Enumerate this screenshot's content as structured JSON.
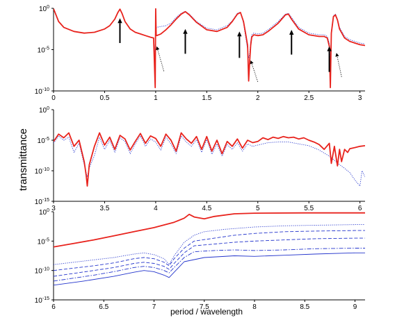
{
  "chart_data": [
    {
      "type": "line",
      "xlim": [
        0,
        3.05
      ],
      "ylim_log10": [
        -10,
        0
      ],
      "y_scale": "log",
      "x_ticks": [
        0,
        0.5,
        1,
        1.5,
        2,
        2.5,
        3
      ],
      "x_tick_labels": [
        "0",
        "0.5",
        "1",
        "1.5",
        "2",
        "2.5",
        "3"
      ],
      "y_ticks": [
        {
          "base": "10",
          "exp": "0"
        },
        {
          "base": "10",
          "exp": "-5"
        },
        {
          "base": "10",
          "exp": "-10"
        }
      ],
      "grid": false,
      "series": [
        {
          "color": "#e8221c",
          "style": "solid",
          "kind": "main",
          "x": [
            0,
            0.05,
            0.1,
            0.2,
            0.3,
            0.4,
            0.5,
            0.55,
            0.6,
            0.63,
            0.65,
            0.67,
            0.7,
            0.75,
            0.8,
            0.85,
            0.9,
            0.95,
            0.98,
            0.995,
            1.0,
            1.005,
            1.01,
            1.05,
            1.1,
            1.15,
            1.2,
            1.25,
            1.29,
            1.33,
            1.4,
            1.5,
            1.6,
            1.7,
            1.75,
            1.8,
            1.83,
            1.86,
            1.88,
            1.9,
            1.91,
            1.92,
            1.93,
            1.94,
            1.96,
            2.0,
            2.05,
            2.1,
            2.2,
            2.27,
            2.3,
            2.33,
            2.4,
            2.5,
            2.6,
            2.65,
            2.68,
            2.7,
            2.71,
            2.72,
            2.74,
            2.76,
            2.78,
            2.8,
            2.85,
            2.9,
            2.95,
            3.0,
            3.05
          ],
          "y_log10": [
            -0.05,
            -1.6,
            -2.3,
            -2.8,
            -3.0,
            -2.9,
            -2.5,
            -2.1,
            -1.3,
            -0.5,
            -0.1,
            -0.6,
            -1.6,
            -2.5,
            -2.9,
            -3.1,
            -3.3,
            -3.5,
            -3.6,
            -9.6,
            -0.05,
            -3.2,
            -3.3,
            -3.1,
            -2.6,
            -2.0,
            -1.3,
            -0.7,
            -0.4,
            -0.8,
            -1.7,
            -2.6,
            -2.8,
            -2.3,
            -1.6,
            -0.7,
            -0.5,
            -1.6,
            -3.0,
            -4.5,
            -8.8,
            -6.5,
            -4.5,
            -3.5,
            -3.2,
            -3.3,
            -3.2,
            -2.8,
            -1.8,
            -0.8,
            -0.7,
            -1.3,
            -2.5,
            -3.2,
            -3.4,
            -3.4,
            -3.6,
            -4.6,
            -9.6,
            -3.0,
            -1.0,
            -0.8,
            -1.4,
            -2.5,
            -3.6,
            -4.0,
            -4.2,
            -4.4,
            -4.5
          ]
        },
        {
          "color": "#2233cc",
          "style": "dotted",
          "kind": "alt",
          "x": [
            0,
            0.05,
            0.1,
            0.2,
            0.3,
            0.4,
            0.5,
            0.55,
            0.6,
            0.63,
            0.65,
            0.67,
            0.7,
            0.75,
            0.8,
            0.85,
            0.9,
            0.95,
            0.98,
            0.995,
            1.0,
            1.005,
            1.01,
            1.05,
            1.1,
            1.15,
            1.2,
            1.25,
            1.29,
            1.33,
            1.4,
            1.5,
            1.6,
            1.7,
            1.75,
            1.8,
            1.83,
            1.86,
            1.88,
            1.9,
            1.91,
            1.92,
            1.93,
            1.94,
            1.96,
            2.0,
            2.05,
            2.1,
            2.2,
            2.27,
            2.3,
            2.33,
            2.4,
            2.5,
            2.6,
            2.65,
            2.68,
            2.7,
            2.71,
            2.72,
            2.74,
            2.76,
            2.78,
            2.8,
            2.85,
            2.9,
            2.95,
            3.0,
            3.05
          ],
          "y_log10": [
            -0.05,
            -1.6,
            -2.3,
            -2.8,
            -3.0,
            -2.9,
            -2.5,
            -2.1,
            -1.3,
            -0.5,
            -0.1,
            -0.6,
            -1.6,
            -2.5,
            -2.9,
            -3.1,
            -3.3,
            -3.5,
            -3.6,
            -6.0,
            -1.0,
            -2.4,
            -2.3,
            -2.2,
            -2.1,
            -1.8,
            -1.1,
            -0.6,
            -0.35,
            -0.7,
            -1.6,
            -2.4,
            -2.6,
            -2.1,
            -1.5,
            -0.6,
            -0.45,
            -1.8,
            -3.4,
            -5.0,
            -6.0,
            -5.5,
            -4.0,
            -3.2,
            -3.0,
            -3.1,
            -3.0,
            -2.6,
            -1.6,
            -0.7,
            -0.6,
            -1.1,
            -2.3,
            -3.0,
            -3.2,
            -3.2,
            -3.4,
            -4.2,
            -6.5,
            -2.8,
            -0.9,
            -0.7,
            -1.3,
            -2.3,
            -3.4,
            -3.8,
            -4.0,
            -4.2,
            -4.3
          ]
        }
      ],
      "annotations": [
        {
          "kind": "solid-arrow",
          "x": 0.65,
          "y_log10": -4.2,
          "tip_y_log10": -1.2
        },
        {
          "kind": "solid-arrow",
          "x": 1.29,
          "y_log10": -5.5,
          "tip_y_log10": -2.5
        },
        {
          "kind": "solid-arrow",
          "x": 1.82,
          "y_log10": -6.0,
          "tip_y_log10": -2.8
        },
        {
          "kind": "solid-arrow",
          "x": 2.33,
          "y_log10": -5.6,
          "tip_y_log10": -2.6
        },
        {
          "kind": "solid-arrow",
          "x": 2.7,
          "y_log10": -7.7,
          "tip_y_log10": -4.6
        },
        {
          "kind": "dotted-arrow",
          "x": 1.08,
          "y_log10": -7.6,
          "tip_x": 1.01,
          "tip_y_log10": -4.6
        },
        {
          "kind": "dotted-arrow",
          "x": 2.0,
          "y_log10": -8.9,
          "tip_x": 1.93,
          "tip_y_log10": -6.3
        },
        {
          "kind": "dotted-arrow",
          "x": 2.82,
          "y_log10": -8.3,
          "tip_x": 2.77,
          "tip_y_log10": -5.4
        }
      ]
    },
    {
      "type": "line",
      "xlim": [
        3,
        6.05
      ],
      "ylim_log10": [
        -15,
        0
      ],
      "y_scale": "log",
      "x_ticks": [
        3,
        3.5,
        4,
        4.5,
        5,
        5.5,
        6
      ],
      "x_tick_labels": [
        "3",
        "3.5",
        "4",
        "4.5",
        "5",
        "5.5",
        "6"
      ],
      "y_ticks": [
        {
          "base": "10",
          "exp": "0"
        },
        {
          "base": "10",
          "exp": "-5"
        },
        {
          "base": "10",
          "exp": "-10"
        },
        {
          "base": "10",
          "exp": "-15"
        }
      ],
      "grid": false,
      "series": [
        {
          "color": "#e8221c",
          "style": "solid",
          "kind": "main",
          "x": [
            3.0,
            3.05,
            3.1,
            3.15,
            3.2,
            3.25,
            3.3,
            3.32,
            3.33,
            3.35,
            3.4,
            3.45,
            3.5,
            3.55,
            3.6,
            3.65,
            3.7,
            3.75,
            3.8,
            3.85,
            3.9,
            3.95,
            4.0,
            4.05,
            4.1,
            4.15,
            4.2,
            4.25,
            4.3,
            4.35,
            4.4,
            4.45,
            4.5,
            4.55,
            4.6,
            4.65,
            4.7,
            4.75,
            4.8,
            4.85,
            4.9,
            4.95,
            5.0,
            5.05,
            5.1,
            5.15,
            5.2,
            5.25,
            5.3,
            5.35,
            5.4,
            5.45,
            5.5,
            5.55,
            5.6,
            5.65,
            5.7,
            5.72,
            5.75,
            5.78,
            5.8,
            5.82,
            5.85,
            5.88,
            5.9,
            5.95,
            6.0,
            6.05
          ],
          "y_log10": [
            -5.2,
            -4.0,
            -4.6,
            -3.8,
            -6.0,
            -5.0,
            -8.5,
            -10.8,
            -12.5,
            -9.0,
            -6.0,
            -3.8,
            -5.8,
            -4.5,
            -6.5,
            -4.2,
            -4.8,
            -6.6,
            -5.2,
            -3.9,
            -5.5,
            -4.3,
            -4.7,
            -6.0,
            -4.0,
            -5.0,
            -6.8,
            -3.8,
            -4.8,
            -5.5,
            -4.4,
            -6.5,
            -4.4,
            -6.8,
            -5.0,
            -7.2,
            -5.2,
            -6.0,
            -4.8,
            -6.3,
            -5.0,
            -5.4,
            -5.2,
            -4.6,
            -4.9,
            -4.5,
            -4.7,
            -4.4,
            -4.6,
            -4.5,
            -4.8,
            -4.6,
            -5.0,
            -5.3,
            -5.7,
            -6.5,
            -5.5,
            -8.8,
            -6.0,
            -9.2,
            -6.5,
            -8.5,
            -6.5,
            -7.0,
            -6.4,
            -6.2,
            -6.0,
            -5.9
          ]
        },
        {
          "color": "#2233cc",
          "style": "dotted",
          "kind": "alt",
          "x": [
            3.0,
            3.05,
            3.1,
            3.15,
            3.2,
            3.25,
            3.3,
            3.33,
            3.35,
            3.4,
            3.45,
            3.5,
            3.55,
            3.6,
            3.65,
            3.7,
            3.75,
            3.8,
            3.85,
            3.9,
            3.95,
            4.0,
            4.05,
            4.1,
            4.15,
            4.2,
            4.25,
            4.3,
            4.35,
            4.4,
            4.45,
            4.5,
            4.55,
            4.6,
            4.65,
            4.7,
            4.75,
            4.8,
            4.85,
            4.9,
            4.95,
            5.0,
            5.1,
            5.2,
            5.3,
            5.4,
            5.5,
            5.6,
            5.7,
            5.75,
            5.8,
            5.85,
            5.9,
            5.95,
            6.0,
            6.02,
            6.05
          ],
          "y_log10": [
            -5.5,
            -4.3,
            -5.0,
            -4.5,
            -7.0,
            -5.5,
            -9.0,
            -11.0,
            -9.5,
            -7.5,
            -4.5,
            -6.5,
            -5.0,
            -7.0,
            -4.6,
            -5.2,
            -7.2,
            -5.6,
            -4.3,
            -6.0,
            -4.8,
            -5.3,
            -6.6,
            -4.5,
            -5.6,
            -7.2,
            -4.3,
            -5.3,
            -6.0,
            -4.9,
            -7.0,
            -4.9,
            -7.3,
            -5.6,
            -7.6,
            -5.7,
            -6.5,
            -5.4,
            -6.8,
            -5.6,
            -6.0,
            -5.8,
            -5.4,
            -5.3,
            -5.3,
            -5.6,
            -5.9,
            -6.6,
            -7.6,
            -8.3,
            -9.0,
            -9.6,
            -10.3,
            -11.5,
            -12.5,
            -10.0,
            -11.0
          ]
        }
      ]
    },
    {
      "type": "line",
      "xlim": [
        6,
        9.1
      ],
      "ylim_log10": [
        -15,
        0
      ],
      "y_scale": "log",
      "x_ticks": [
        6,
        6.5,
        7,
        7.5,
        8,
        8.5,
        9
      ],
      "x_tick_labels": [
        "6",
        "6.5",
        "7",
        "7.5",
        "8",
        "8.5",
        "9"
      ],
      "y_ticks": [
        {
          "base": "10",
          "exp": "0"
        },
        {
          "base": "10",
          "exp": "-5"
        },
        {
          "base": "10",
          "exp": "-10"
        },
        {
          "base": "10",
          "exp": "-15"
        }
      ],
      "grid": false,
      "xlabel": "period / wavelength",
      "series": [
        {
          "color": "#e8221c",
          "style": "solid",
          "kind": "main",
          "x": [
            6.0,
            6.2,
            6.4,
            6.6,
            6.8,
            7.0,
            7.2,
            7.3,
            7.35,
            7.4,
            7.5,
            7.6,
            7.8,
            8.0,
            8.5,
            9.0,
            9.1
          ],
          "y_log10": [
            -6.0,
            -5.4,
            -4.8,
            -4.1,
            -3.4,
            -2.7,
            -1.8,
            -1.1,
            -0.45,
            -0.9,
            -1.2,
            -0.8,
            -0.35,
            -0.25,
            -0.2,
            -0.2,
            -0.2
          ]
        },
        {
          "color": "#2233cc",
          "style": "dotted",
          "kind": "alt",
          "x": [
            6.0,
            6.2,
            6.4,
            6.6,
            6.8,
            6.9,
            7.0,
            7.1,
            7.15,
            7.2,
            7.3,
            7.4,
            7.5,
            7.7,
            8.0,
            8.3,
            8.6,
            9.0,
            9.1
          ],
          "y_log10": [
            -9.0,
            -8.6,
            -8.2,
            -7.8,
            -7.2,
            -7.0,
            -7.3,
            -8.0,
            -9.0,
            -7.5,
            -5.2,
            -4.0,
            -3.4,
            -3.0,
            -2.6,
            -2.4,
            -2.3,
            -2.2,
            -2.2
          ]
        },
        {
          "color": "#2233cc",
          "style": "dashed",
          "kind": "alt",
          "x": [
            6.0,
            6.2,
            6.4,
            6.6,
            6.8,
            6.9,
            7.0,
            7.1,
            7.15,
            7.2,
            7.3,
            7.4,
            7.6,
            7.8,
            8.0,
            8.3,
            8.6,
            9.0,
            9.1
          ],
          "y_log10": [
            -10.0,
            -9.6,
            -9.2,
            -8.7,
            -8.0,
            -7.8,
            -8.0,
            -8.6,
            -9.2,
            -8.0,
            -6.2,
            -5.0,
            -4.5,
            -4.0,
            -3.7,
            -3.4,
            -3.3,
            -3.2,
            -3.2
          ]
        },
        {
          "color": "#2233cc",
          "style": "dashed",
          "kind": "alt",
          "x": [
            6.0,
            6.2,
            6.4,
            6.6,
            6.8,
            6.9,
            7.0,
            7.1,
            7.15,
            7.2,
            7.3,
            7.4,
            7.6,
            7.8,
            8.0,
            8.3,
            8.6,
            9.0,
            9.1
          ],
          "y_log10": [
            -11.0,
            -10.5,
            -10.0,
            -9.5,
            -8.8,
            -8.6,
            -8.8,
            -9.3,
            -9.8,
            -8.8,
            -7.0,
            -5.8,
            -5.5,
            -5.2,
            -5.0,
            -4.8,
            -4.6,
            -4.5,
            -4.5
          ]
        },
        {
          "color": "#2233cc",
          "style": "dashdot",
          "kind": "alt",
          "x": [
            6.0,
            6.2,
            6.4,
            6.6,
            6.8,
            6.9,
            7.0,
            7.1,
            7.15,
            7.2,
            7.3,
            7.4,
            7.6,
            7.8,
            8.0,
            8.3,
            8.6,
            9.0,
            9.1
          ],
          "y_log10": [
            -11.8,
            -11.3,
            -10.8,
            -10.2,
            -9.5,
            -9.3,
            -9.5,
            -10.0,
            -10.4,
            -9.5,
            -7.8,
            -6.8,
            -6.6,
            -6.5,
            -6.6,
            -6.5,
            -6.3,
            -6.2,
            -6.2
          ]
        },
        {
          "color": "#2233cc",
          "style": "solid",
          "kind": "alt",
          "x": [
            6.0,
            6.3,
            6.6,
            6.8,
            6.9,
            7.0,
            7.1,
            7.15,
            7.2,
            7.3,
            7.5,
            7.8,
            8.0,
            8.3,
            8.6,
            9.0,
            9.1
          ],
          "y_log10": [
            -12.5,
            -11.8,
            -11.0,
            -10.3,
            -10.0,
            -10.2,
            -10.8,
            -11.2,
            -10.3,
            -8.5,
            -7.8,
            -7.5,
            -7.6,
            -7.4,
            -7.2,
            -7.0,
            -7.0
          ]
        }
      ]
    }
  ],
  "ylabel": "transmittance",
  "xlabel": "period / wavelength"
}
